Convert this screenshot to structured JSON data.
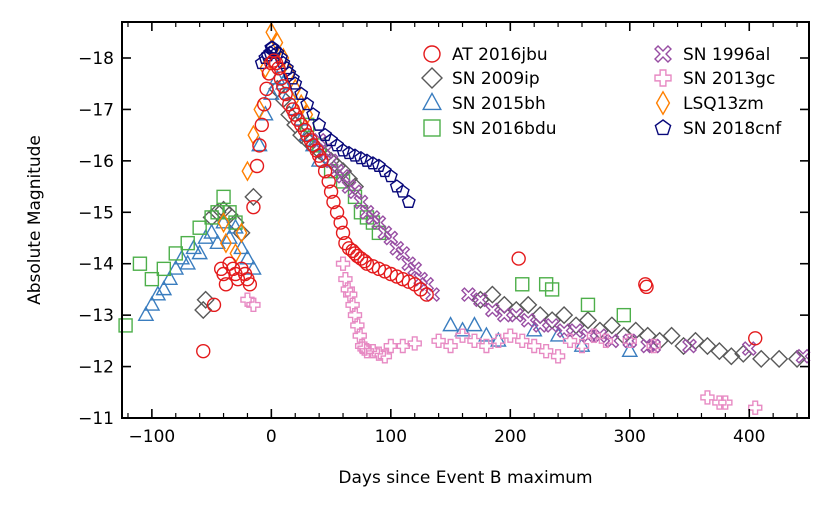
{
  "chart_data": {
    "type": "scatter",
    "title": "",
    "xlabel": "Days since Event B maximum",
    "ylabel": "Absolute Magnitude",
    "xlim": [
      -125,
      450
    ],
    "ylim": [
      -11,
      -18.7
    ],
    "y_inverted": true,
    "xticks": [
      -100,
      0,
      100,
      200,
      300,
      400
    ],
    "xtick_labels": [
      "−100",
      "0",
      "100",
      "200",
      "300",
      "400"
    ],
    "yticks": [
      -18,
      -17,
      -16,
      -15,
      -14,
      -13,
      -12,
      -11
    ],
    "ytick_labels": [
      "−18",
      "−17",
      "−16",
      "−15",
      "−14",
      "−13",
      "−12",
      "−11"
    ],
    "grid": false,
    "legend_position": "top-right",
    "series": [
      {
        "name": "SN 2009ip",
        "marker": "diamond",
        "color": "#595959",
        "x": [
          -50,
          -45,
          -40,
          -35,
          -30,
          -25,
          -55,
          -57,
          -15,
          5,
          10,
          15,
          20,
          25,
          30,
          35,
          40,
          45,
          50,
          55,
          60,
          65,
          70,
          175,
          185,
          195,
          205,
          215,
          225,
          235,
          245,
          255,
          265,
          275,
          285,
          295,
          305,
          315,
          325,
          335,
          345,
          355,
          365,
          375,
          385,
          395,
          410,
          425,
          440
        ],
        "y": [
          -14.9,
          -15.0,
          -15.05,
          -14.95,
          -14.8,
          -14.6,
          -13.3,
          -13.1,
          -15.3,
          -17.4,
          -17.2,
          -16.9,
          -16.7,
          -16.5,
          -16.4,
          -16.3,
          -16.2,
          -16.1,
          -16.0,
          -15.9,
          -15.8,
          -15.65,
          -15.5,
          -13.3,
          -13.4,
          -13.2,
          -13.1,
          -13.2,
          -13.0,
          -12.9,
          -13.0,
          -12.8,
          -12.9,
          -12.7,
          -12.8,
          -12.6,
          -12.7,
          -12.6,
          -12.5,
          -12.6,
          -12.4,
          -12.5,
          -12.4,
          -12.3,
          -12.2,
          -12.25,
          -12.15,
          -12.15,
          -12.15
        ]
      },
      {
        "name": "SN 2015bh",
        "marker": "triangle",
        "color": "#3a7dbf",
        "x": [
          -105,
          -100,
          -95,
          -90,
          -85,
          -80,
          -75,
          -70,
          -65,
          -60,
          -55,
          -50,
          -45,
          -40,
          -35,
          -30,
          -25,
          -20,
          -15,
          -10,
          -5,
          0,
          5,
          10,
          15,
          20,
          25,
          30,
          35,
          40,
          150,
          160,
          170,
          180,
          190,
          220,
          240,
          260,
          300
        ],
        "y": [
          -13.0,
          -13.2,
          -13.4,
          -13.5,
          -13.7,
          -13.9,
          -14.1,
          -14.0,
          -14.3,
          -14.2,
          -14.5,
          -14.6,
          -14.4,
          -14.8,
          -14.5,
          -14.7,
          -14.3,
          -14.1,
          -13.9,
          -16.3,
          -16.9,
          -17.3,
          -17.6,
          -17.5,
          -17.3,
          -17.0,
          -16.8,
          -16.5,
          -16.3,
          -16.0,
          -12.8,
          -12.7,
          -12.8,
          -12.6,
          -12.5,
          -12.7,
          -12.6,
          -12.4,
          -12.3
        ]
      },
      {
        "name": "SN 2016bdu",
        "marker": "square",
        "color": "#4daf4a",
        "x": [
          -122,
          -110,
          -100,
          -90,
          -80,
          -70,
          -60,
          -50,
          -45,
          -40,
          -35,
          -30,
          30,
          40,
          50,
          60,
          70,
          75,
          80,
          85,
          90,
          210,
          230,
          235,
          265,
          295
        ],
        "y": [
          -12.8,
          -14.0,
          -13.7,
          -13.9,
          -14.2,
          -14.4,
          -14.7,
          -14.9,
          -15.0,
          -15.3,
          -15.0,
          -14.8,
          -16.7,
          -16.3,
          -15.8,
          -15.6,
          -15.3,
          -15.0,
          -14.9,
          -14.8,
          -14.6,
          -13.6,
          -13.6,
          -13.5,
          -13.2,
          -13.0
        ]
      },
      {
        "name": "SN 1996al",
        "marker": "x",
        "color": "#984ea3",
        "x": [
          40,
          45,
          50,
          55,
          60,
          65,
          70,
          75,
          80,
          85,
          90,
          95,
          100,
          105,
          110,
          115,
          120,
          125,
          130,
          135,
          165,
          175,
          185,
          195,
          205,
          215,
          225,
          235,
          245,
          255,
          265,
          275,
          285,
          300,
          315,
          320,
          350,
          400,
          445
        ],
        "y": [
          -16.4,
          -16.2,
          -16.0,
          -15.8,
          -15.7,
          -15.5,
          -15.4,
          -15.2,
          -15.0,
          -14.9,
          -14.8,
          -14.6,
          -14.5,
          -14.3,
          -14.2,
          -14.0,
          -13.9,
          -13.7,
          -13.6,
          -13.4,
          -13.4,
          -13.3,
          -13.1,
          -13.0,
          -13.0,
          -12.9,
          -12.8,
          -12.8,
          -12.7,
          -12.7,
          -12.6,
          -12.6,
          -12.5,
          -12.5,
          -12.4,
          -12.4,
          -12.4,
          -12.35,
          -12.2
        ]
      },
      {
        "name": "SN 2013gc",
        "marker": "plus",
        "color": "#e78ac3",
        "x": [
          -20,
          -15,
          60,
          62,
          64,
          66,
          68,
          70,
          72,
          74,
          76,
          78,
          80,
          85,
          90,
          95,
          100,
          110,
          120,
          140,
          150,
          160,
          170,
          180,
          190,
          200,
          210,
          220,
          230,
          240,
          250,
          260,
          270,
          280,
          300,
          320,
          365,
          375,
          380,
          405
        ],
        "y": [
          -13.3,
          -13.2,
          -14.0,
          -13.7,
          -13.5,
          -13.4,
          -13.2,
          -13.0,
          -12.8,
          -12.6,
          -12.4,
          -12.35,
          -12.3,
          -12.3,
          -12.25,
          -12.2,
          -12.4,
          -12.4,
          -12.45,
          -12.5,
          -12.4,
          -12.6,
          -12.5,
          -12.4,
          -12.5,
          -12.6,
          -12.5,
          -12.4,
          -12.3,
          -12.2,
          -12.5,
          -12.4,
          -12.6,
          -12.5,
          -12.5,
          -12.4,
          -11.4,
          -11.3,
          -11.3,
          -11.2
        ]
      },
      {
        "name": "LSQ13zm",
        "marker": "thin-diamond",
        "color": "#ff7f00",
        "x": [
          -40,
          -38,
          -30,
          -25,
          -20,
          -15,
          -10,
          -5,
          0,
          5,
          10,
          15,
          20,
          25,
          30
        ],
        "y": [
          -14.8,
          -14.4,
          -14.2,
          -14.6,
          -15.8,
          -16.5,
          -17.0,
          -17.8,
          -18.5,
          -18.3,
          -18.0,
          -17.7,
          -17.4,
          -17.1,
          -16.9
        ]
      },
      {
        "name": "SN 2018cnf",
        "marker": "pentagon",
        "color": "#08087a",
        "x": [
          -8,
          -5,
          -3,
          -1,
          0,
          1,
          3,
          5,
          8,
          10,
          13,
          15,
          18,
          20,
          25,
          30,
          35,
          40,
          45,
          50,
          55,
          60,
          65,
          70,
          75,
          80,
          85,
          90,
          95,
          100,
          105,
          110,
          115
        ],
        "y": [
          -17.9,
          -18.0,
          -18.05,
          -18.1,
          -18.2,
          -18.2,
          -18.15,
          -18.1,
          -18.0,
          -17.9,
          -17.8,
          -17.7,
          -17.6,
          -17.5,
          -17.3,
          -17.1,
          -16.9,
          -16.7,
          -16.5,
          -16.4,
          -16.3,
          -16.2,
          -16.15,
          -16.1,
          -16.05,
          -16.0,
          -15.95,
          -15.9,
          -15.8,
          -15.7,
          -15.5,
          -15.4,
          -15.2
        ]
      },
      {
        "name": "AT 2016jbu",
        "marker": "circle",
        "color": "#e41a1c",
        "x": [
          -57,
          -48,
          -42,
          -40,
          -38,
          -35,
          -32,
          -30,
          -28,
          -25,
          -22,
          -20,
          -18,
          -15,
          -12,
          -10,
          -8,
          -6,
          -4,
          -2,
          0,
          2,
          4,
          6,
          8,
          10,
          12,
          15,
          18,
          20,
          22,
          25,
          28,
          30,
          33,
          35,
          38,
          40,
          42,
          45,
          48,
          50,
          52,
          55,
          58,
          60,
          62,
          65,
          68,
          70,
          72,
          75,
          78,
          80,
          85,
          90,
          95,
          100,
          105,
          110,
          115,
          120,
          125,
          130,
          207,
          313,
          314,
          405
        ],
        "y": [
          -12.3,
          -13.2,
          -13.9,
          -13.8,
          -13.6,
          -14.0,
          -13.9,
          -13.8,
          -13.7,
          -13.9,
          -13.8,
          -13.7,
          -13.6,
          -15.1,
          -15.9,
          -16.3,
          -16.7,
          -17.1,
          -17.4,
          -17.7,
          -17.9,
          -17.95,
          -17.9,
          -17.8,
          -17.6,
          -17.45,
          -17.3,
          -17.1,
          -17.0,
          -16.9,
          -16.8,
          -16.7,
          -16.6,
          -16.5,
          -16.4,
          -16.3,
          -16.2,
          -16.1,
          -16.0,
          -15.8,
          -15.6,
          -15.4,
          -15.2,
          -15.0,
          -14.8,
          -14.6,
          -14.4,
          -14.3,
          -14.25,
          -14.2,
          -14.15,
          -14.1,
          -14.05,
          -14.0,
          -13.95,
          -13.9,
          -13.85,
          -13.8,
          -13.75,
          -13.7,
          -13.65,
          -13.6,
          -13.5,
          -13.4,
          -14.1,
          -13.6,
          -13.55,
          -12.55
        ]
      }
    ],
    "legend_order": [
      "AT 2016jbu",
      "SN 2009ip",
      "SN 2015bh",
      "SN 2016bdu",
      "SN 1996al",
      "SN 2013gc",
      "LSQ13zm",
      "SN 2018cnf"
    ]
  }
}
